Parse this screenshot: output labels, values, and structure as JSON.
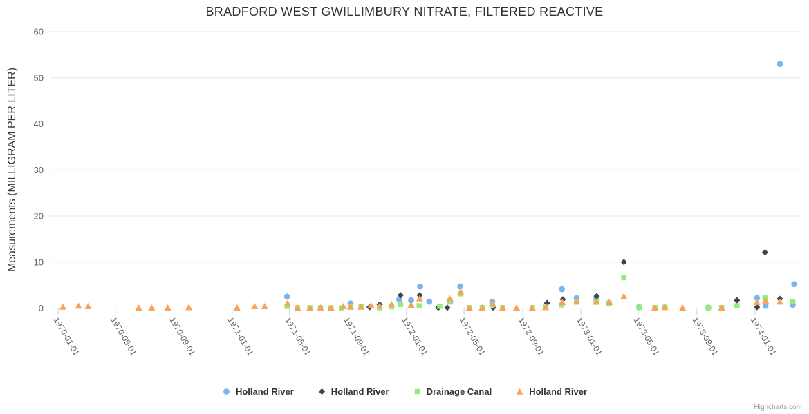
{
  "title": "BRADFORD WEST GWILLIMBURY NITRATE, FILTERED REACTIVE",
  "credit": "Highcharts.com",
  "colors": {
    "title": "#333333",
    "axis_label": "#606060",
    "axis_line": "#ccd6eb",
    "gridline": "#e6e6e6",
    "legend_text": "#333333",
    "background": "#ffffff"
  },
  "chart_data": {
    "type": "scatter",
    "title": "BRADFORD WEST GWILLIMBURY NITRATE, FILTERED REACTIVE",
    "xlabel": "",
    "ylabel": "Measurements (MILLIGRAM PER LITER)",
    "ylim": [
      0,
      60
    ],
    "yticks": [
      0,
      10,
      20,
      30,
      40,
      50,
      60
    ],
    "xlim": [
      "1969-12-10",
      "1974-04-05"
    ],
    "xticks": [
      "1970-01-01",
      "1970-05-01",
      "1970-09-01",
      "1971-01-01",
      "1971-05-01",
      "1971-09-01",
      "1972-01-01",
      "1972-05-01",
      "1972-09-01",
      "1973-01-01",
      "1973-05-01",
      "1973-09-01",
      "1974-01-01"
    ],
    "grid": "horizontal",
    "legend_position": "bottom",
    "series": [
      {
        "name": "Holland River",
        "marker": "circle",
        "color": "#7cb5ec",
        "points": [
          [
            "1971-04-26",
            2.5
          ],
          [
            "1971-09-06",
            1.0
          ],
          [
            "1971-12-17",
            1.9
          ],
          [
            "1972-01-11",
            1.7
          ],
          [
            "1972-01-30",
            4.7
          ],
          [
            "1972-02-18",
            1.4
          ],
          [
            "1972-04-02",
            1.4
          ],
          [
            "1972-04-23",
            4.7
          ],
          [
            "1972-06-29",
            1.4
          ],
          [
            "1972-11-22",
            4.1
          ],
          [
            "1972-12-23",
            2.2
          ],
          [
            "1973-02-02",
            1.9
          ],
          [
            "1973-03-01",
            1.0
          ],
          [
            "1973-05-03",
            0.2
          ],
          [
            "1973-09-25",
            0.1
          ],
          [
            "1974-01-05",
            2.2
          ],
          [
            "1974-01-23",
            0.5
          ],
          [
            "1974-02-22",
            53
          ],
          [
            "1974-03-21",
            0.7
          ],
          [
            "1974-03-24",
            5.2
          ]
        ]
      },
      {
        "name": "Holland River",
        "marker": "diamond",
        "color": "#434348",
        "points": [
          [
            "1971-10-16",
            0.2
          ],
          [
            "1971-11-06",
            0.8
          ],
          [
            "1971-12-20",
            2.8
          ],
          [
            "1972-01-29",
            2.8
          ],
          [
            "1972-03-08",
            0.1
          ],
          [
            "1972-03-27",
            0.1
          ],
          [
            "1972-07-01",
            0.1
          ],
          [
            "1972-10-22",
            1.1
          ],
          [
            "1972-11-24",
            1.9
          ],
          [
            "1973-02-03",
            2.6
          ],
          [
            "1973-04-01",
            10
          ],
          [
            "1973-11-24",
            1.7
          ],
          [
            "1974-01-05",
            0.2
          ],
          [
            "1974-01-22",
            12.1
          ],
          [
            "1974-02-22",
            2.0
          ]
        ]
      },
      {
        "name": "Drainage Canal",
        "marker": "square",
        "color": "#90ed7d",
        "points": [
          [
            "1971-04-26",
            0.4
          ],
          [
            "1971-05-18",
            0.05
          ],
          [
            "1971-06-13",
            0.05
          ],
          [
            "1971-07-05",
            0.05
          ],
          [
            "1971-07-27",
            0.05
          ],
          [
            "1971-08-18",
            0.05
          ],
          [
            "1971-09-06",
            0.25
          ],
          [
            "1971-09-28",
            0.4
          ],
          [
            "1971-11-06",
            0.1
          ],
          [
            "1971-12-01",
            0.3
          ],
          [
            "1971-12-20",
            0.8
          ],
          [
            "1972-01-28",
            0.5
          ],
          [
            "1972-03-11",
            0.4
          ],
          [
            "1972-04-01",
            1.6
          ],
          [
            "1972-04-24",
            3.1
          ],
          [
            "1972-05-12",
            0.1
          ],
          [
            "1972-06-08",
            0.1
          ],
          [
            "1972-06-29",
            0.5
          ],
          [
            "1972-07-21",
            0.1
          ],
          [
            "1972-09-21",
            0.1
          ],
          [
            "1972-10-19",
            0.2
          ],
          [
            "1972-11-22",
            0.7
          ],
          [
            "1972-12-23",
            1.3
          ],
          [
            "1973-02-02",
            1.3
          ],
          [
            "1973-03-01",
            1.1
          ],
          [
            "1973-04-01",
            6.6
          ],
          [
            "1973-05-03",
            0.2
          ],
          [
            "1973-06-05",
            0.1
          ],
          [
            "1973-06-26",
            0.2
          ],
          [
            "1973-09-25",
            0.1
          ],
          [
            "1973-10-23",
            0.1
          ],
          [
            "1973-11-24",
            0.5
          ],
          [
            "1974-01-22",
            2.2
          ],
          [
            "1974-03-21",
            1.4
          ]
        ]
      },
      {
        "name": "Holland River",
        "marker": "triangle",
        "color": "#f7a35c",
        "points": [
          [
            "1970-01-11",
            0.3
          ],
          [
            "1970-02-13",
            0.5
          ],
          [
            "1970-03-05",
            0.4
          ],
          [
            "1970-06-19",
            0.1
          ],
          [
            "1970-07-16",
            0.1
          ],
          [
            "1970-08-19",
            0.1
          ],
          [
            "1970-10-02",
            0.2
          ],
          [
            "1971-01-11",
            0.1
          ],
          [
            "1971-02-17",
            0.4
          ],
          [
            "1971-03-10",
            0.4
          ],
          [
            "1971-04-27",
            1.1
          ],
          [
            "1971-05-18",
            0.1
          ],
          [
            "1971-06-13",
            0.1
          ],
          [
            "1971-07-05",
            0.1
          ],
          [
            "1971-07-27",
            0.1
          ],
          [
            "1971-08-22",
            0.4
          ],
          [
            "1971-09-06",
            0.3
          ],
          [
            "1971-09-28",
            0.3
          ],
          [
            "1971-10-19",
            0.6
          ],
          [
            "1971-11-06",
            0.5
          ],
          [
            "1971-12-01",
            0.9
          ],
          [
            "1972-01-11",
            0.7
          ],
          [
            "1972-01-29",
            2.1
          ],
          [
            "1972-04-01",
            2.1
          ],
          [
            "1972-04-24",
            3.5
          ],
          [
            "1972-05-12",
            0.1
          ],
          [
            "1972-06-08",
            0.1
          ],
          [
            "1972-06-29",
            1.1
          ],
          [
            "1972-07-21",
            0.1
          ],
          [
            "1972-08-19",
            0.1
          ],
          [
            "1972-09-21",
            0.1
          ],
          [
            "1972-10-19",
            0.2
          ],
          [
            "1972-11-23",
            1.3
          ],
          [
            "1972-12-23",
            1.5
          ],
          [
            "1973-02-02",
            1.4
          ],
          [
            "1973-03-01",
            1.3
          ],
          [
            "1973-04-01",
            2.6
          ],
          [
            "1973-06-05",
            0.1
          ],
          [
            "1973-06-26",
            0.2
          ],
          [
            "1973-08-02",
            0.1
          ],
          [
            "1973-10-23",
            0.1
          ],
          [
            "1974-01-05",
            1.3
          ],
          [
            "1974-01-23",
            1.6
          ],
          [
            "1974-02-22",
            1.4
          ]
        ]
      }
    ]
  }
}
